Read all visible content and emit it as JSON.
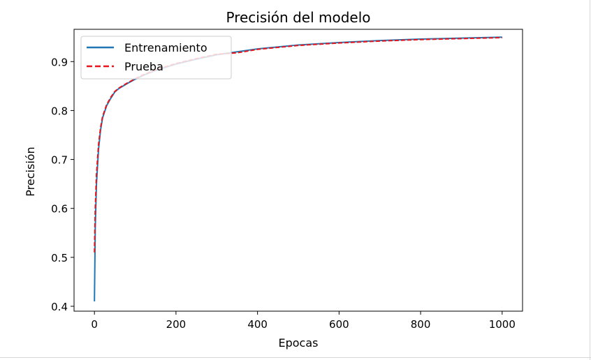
{
  "chart_data": {
    "type": "line",
    "title": "Precisión del modelo",
    "xlabel": "Epocas",
    "ylabel": "Precisión",
    "xlim": [
      -50,
      1050
    ],
    "ylim": [
      0.39,
      0.966
    ],
    "xticks": [
      0,
      200,
      400,
      600,
      800,
      1000
    ],
    "yticks": [
      0.4,
      0.5,
      0.6,
      0.7,
      0.8,
      0.9
    ],
    "ytick_labels": [
      "0.4",
      "0.5",
      "0.6",
      "0.7",
      "0.8",
      "0.9"
    ],
    "grid": false,
    "legend_position": "upper-left",
    "series": [
      {
        "name": "Entrenamiento",
        "color": "#1f77b4",
        "style": "solid",
        "x": [
          0,
          2,
          5,
          10,
          15,
          20,
          30,
          40,
          50,
          60,
          80,
          100,
          120,
          150,
          200,
          250,
          300,
          350,
          400,
          500,
          600,
          700,
          800,
          900,
          1000
        ],
        "y": [
          0.41,
          0.56,
          0.65,
          0.72,
          0.76,
          0.785,
          0.81,
          0.825,
          0.838,
          0.845,
          0.855,
          0.864,
          0.872,
          0.882,
          0.895,
          0.905,
          0.914,
          0.92,
          0.926,
          0.934,
          0.939,
          0.943,
          0.946,
          0.948,
          0.95
        ]
      },
      {
        "name": "Prueba",
        "color": "#e8161c",
        "style": "dashed",
        "x": [
          0,
          2,
          5,
          10,
          15,
          20,
          30,
          40,
          50,
          60,
          80,
          100,
          120,
          150,
          200,
          250,
          300,
          350,
          400,
          500,
          600,
          700,
          800,
          900,
          1000
        ],
        "y": [
          0.51,
          0.6,
          0.67,
          0.73,
          0.765,
          0.788,
          0.812,
          0.827,
          0.839,
          0.846,
          0.856,
          0.865,
          0.873,
          0.883,
          0.896,
          0.906,
          0.915,
          0.918,
          0.925,
          0.933,
          0.938,
          0.942,
          0.945,
          0.947,
          0.949
        ]
      }
    ]
  }
}
